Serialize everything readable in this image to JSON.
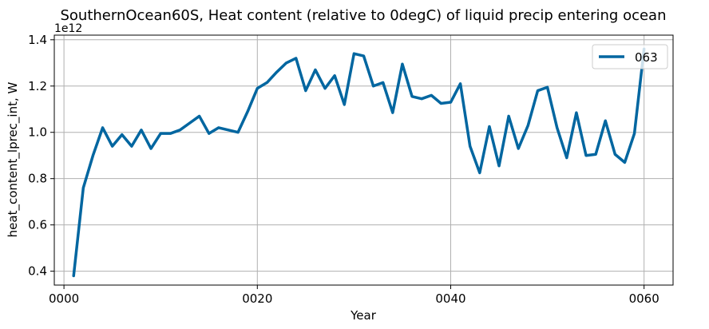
{
  "chart_data": {
    "type": "line",
    "title": "SouthernOcean60S, Heat content (relative to 0degC) of liquid precip entering ocean",
    "xlabel": "Year",
    "ylabel": "heat_content_lprec_int, W",
    "y_offset_label": "1e12",
    "y_scale": 1000000000000.0,
    "xlim": [
      -1,
      63
    ],
    "ylim": [
      0.34,
      1.42
    ],
    "x_ticks": [
      0,
      20,
      40,
      60
    ],
    "x_tick_labels": [
      "0000",
      "0020",
      "0040",
      "0060"
    ],
    "y_ticks": [
      0.4,
      0.6,
      0.8,
      1.0,
      1.2,
      1.4
    ],
    "y_tick_labels": [
      "0.4",
      "0.6",
      "0.8",
      "1.0",
      "1.2",
      "1.4"
    ],
    "grid": true,
    "legend_position": "top-right",
    "series": [
      {
        "name": "063",
        "color": "#0066a0",
        "x": [
          1,
          2,
          3,
          4,
          5,
          6,
          7,
          8,
          9,
          10,
          11,
          12,
          13,
          14,
          15,
          16,
          17,
          18,
          19,
          20,
          21,
          22,
          23,
          24,
          25,
          26,
          27,
          28,
          29,
          30,
          31,
          32,
          33,
          34,
          35,
          36,
          37,
          38,
          39,
          40,
          41,
          42,
          43,
          44,
          45,
          46,
          47,
          48,
          49,
          50,
          51,
          52,
          53,
          54,
          55,
          56,
          57,
          58,
          59,
          60
        ],
        "values": [
          0.38,
          0.76,
          0.9,
          1.02,
          0.94,
          0.99,
          0.94,
          1.01,
          0.93,
          0.995,
          0.995,
          1.01,
          1.04,
          1.07,
          0.995,
          1.02,
          1.01,
          1.0,
          1.09,
          1.19,
          1.215,
          1.26,
          1.3,
          1.32,
          1.18,
          1.27,
          1.19,
          1.245,
          1.12,
          1.34,
          1.33,
          1.2,
          1.215,
          1.085,
          1.295,
          1.155,
          1.145,
          1.16,
          1.125,
          1.13,
          1.21,
          0.94,
          0.825,
          1.025,
          0.855,
          1.07,
          0.93,
          1.03,
          1.18,
          1.195,
          1.02,
          0.89,
          1.085,
          0.9,
          0.905,
          1.05,
          0.905,
          0.87,
          0.995,
          1.36
        ]
      }
    ]
  }
}
